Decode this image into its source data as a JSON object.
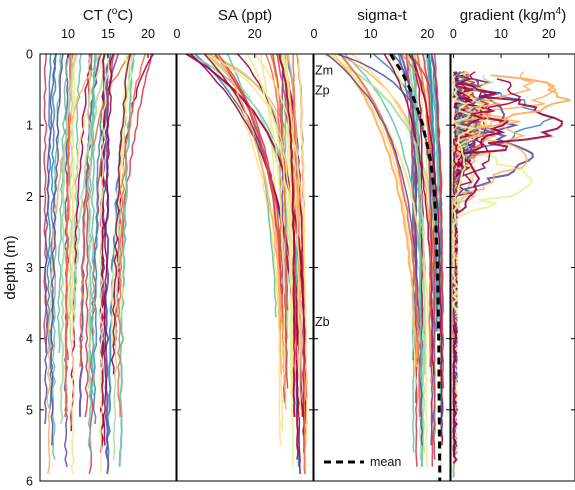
{
  "chart_data": {
    "type": "line",
    "ylabel": "depth (m)",
    "y_axis": {
      "range": [
        0,
        6
      ],
      "inverted": true,
      "ticks": [
        0,
        1,
        2,
        3,
        4,
        5,
        6
      ]
    },
    "colormap": [
      "#5e4fa2",
      "#3288bd",
      "#66c2a5",
      "#abdda4",
      "#e6f598",
      "#fee08b",
      "#fdae61",
      "#f46d43",
      "#d53e4f",
      "#9e0142"
    ],
    "panels": [
      {
        "id": "ct",
        "title": "CT (°C)",
        "title_parts": [
          "CT (",
          "o",
          "C)"
        ],
        "xlim": [
          6.5,
          23.5
        ],
        "xticks": [
          10,
          15,
          20
        ],
        "profile_range": {
          "deep_min": 7,
          "deep_max": 16.5,
          "surface_min": 7,
          "surface_max": 23
        },
        "profile_count": 42
      },
      {
        "id": "sa",
        "title": "SA (ppt)",
        "xlim": [
          0,
          35
        ],
        "xticks": [
          0,
          20
        ],
        "profile_range": {
          "deep_min": 26.5,
          "deep_max": 33.5,
          "surface_min": 2,
          "surface_max": 33
        },
        "profile_count": 42
      },
      {
        "id": "sigma",
        "title": "sigma-t",
        "xlim": [
          0,
          24
        ],
        "xticks": [
          0,
          10,
          20
        ],
        "mean_profile": {
          "name": "mean",
          "depth": [
            0,
            0.25,
            0.5,
            0.75,
            1.0,
            1.5,
            2.0,
            3.0,
            4.0,
            5.0,
            6.0
          ],
          "values": [
            13.5,
            15.5,
            17.0,
            18.2,
            19.2,
            20.6,
            21.3,
            21.8,
            22.0,
            22.1,
            22.2
          ]
        },
        "annotations": [
          {
            "text": "Zm",
            "depth": 0.22
          },
          {
            "text": "Zp",
            "depth": 0.5
          },
          {
            "text": "Zb",
            "depth": 3.75
          }
        ],
        "profile_count": 42
      },
      {
        "id": "gradient",
        "title": "gradient (kg/m⁴)",
        "title_parts": [
          "gradient (kg/m",
          "4",
          ")"
        ],
        "xlim": [
          -0.5,
          25.5
        ],
        "xticks": [
          0,
          10,
          20
        ],
        "profile_count": 42
      }
    ],
    "legend": {
      "label": "mean",
      "position": "bottom"
    }
  }
}
